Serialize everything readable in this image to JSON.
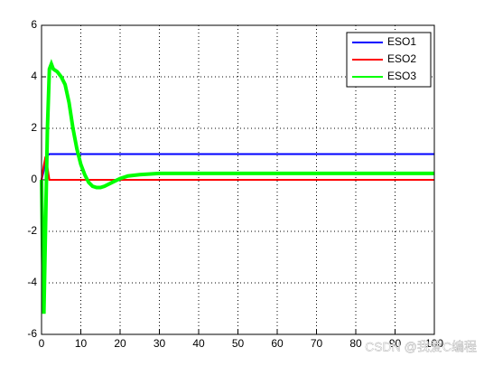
{
  "chart_data": {
    "type": "line",
    "xlim": [
      0,
      100
    ],
    "xticks": [
      0,
      10,
      20,
      30,
      40,
      50,
      60,
      70,
      80,
      90,
      100
    ],
    "ylim": [
      -6,
      6
    ],
    "yticks": [
      -6,
      -4,
      -2,
      0,
      2,
      4,
      6
    ],
    "grid": true,
    "legend": "northeast",
    "series": [
      {
        "name": "ESO1",
        "color": "#0000ff",
        "x": [
          0,
          0.5,
          1,
          1.5,
          2,
          100
        ],
        "values": [
          0,
          0.3,
          0.7,
          0.95,
          1,
          1
        ]
      },
      {
        "name": "ESO2",
        "color": "#ff0000",
        "x": [
          0,
          0.5,
          1,
          1.5,
          2,
          100
        ],
        "values": [
          0,
          0.5,
          0.9,
          0.5,
          0,
          0
        ]
      },
      {
        "name": "ESO3",
        "color": "#00ff00",
        "x": [
          0,
          0.3,
          0.6,
          1,
          1.5,
          2,
          2.5,
          3,
          4,
          5,
          6,
          7,
          8,
          9,
          10,
          11,
          12,
          13,
          14,
          15,
          16,
          18,
          20,
          22,
          25,
          30,
          40,
          50,
          60,
          70,
          80,
          90,
          100
        ],
        "values": [
          0,
          -3,
          -5.2,
          -2,
          2,
          4.3,
          4.5,
          4.3,
          4.2,
          4.0,
          3.7,
          3.0,
          2.0,
          1.2,
          0.6,
          0.2,
          -0.1,
          -0.25,
          -0.3,
          -0.3,
          -0.25,
          -0.1,
          0.05,
          0.15,
          0.2,
          0.25,
          0.25,
          0.25,
          0.25,
          0.25,
          0.25,
          0.25,
          0.25
        ]
      }
    ],
    "watermark": "CSDN @我爱C编程"
  }
}
